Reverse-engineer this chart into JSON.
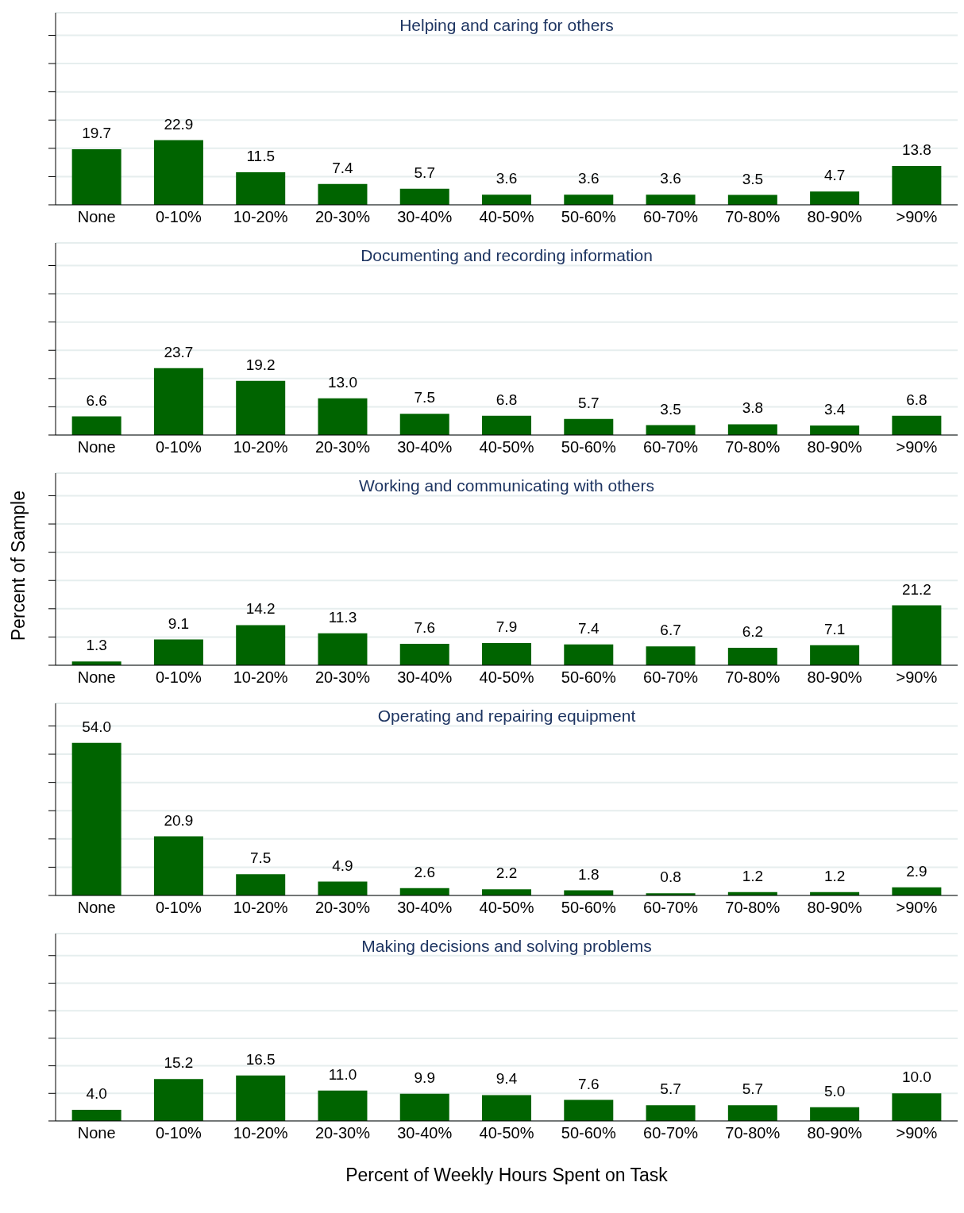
{
  "chart_data": [
    {
      "type": "bar",
      "title": "Helping and caring for others",
      "categories": [
        "None",
        "0-10%",
        "10-20%",
        "20-30%",
        "30-40%",
        "40-50%",
        "50-60%",
        "60-70%",
        "70-80%",
        "80-90%",
        ">90%"
      ],
      "values": [
        19.7,
        22.9,
        11.5,
        7.4,
        5.7,
        3.6,
        3.6,
        3.6,
        3.5,
        4.7,
        13.8
      ],
      "value_labels": [
        "19.7",
        "22.9",
        "11.5",
        "7.4",
        "5.7",
        "3.6",
        "3.6",
        "3.6",
        "3.5",
        "4.7",
        "13.8"
      ],
      "color": "#006400",
      "ylim": [
        0,
        68
      ],
      "yticks": [
        {
          "value": 0,
          "label": null
        },
        {
          "value": 10,
          "label": null
        },
        {
          "value": 20,
          "label": null
        },
        {
          "value": 30,
          "label": null
        },
        {
          "value": 40,
          "label": null
        },
        {
          "value": 50,
          "label": null
        },
        {
          "value": 60,
          "label": null
        }
      ],
      "tick_labels": "x",
      "grid": "y"
    },
    {
      "type": "bar",
      "title": "Documenting and recording information",
      "categories": [
        "None",
        "0-10%",
        "10-20%",
        "20-30%",
        "30-40%",
        "40-50%",
        "50-60%",
        "60-70%",
        "70-80%",
        "80-90%",
        ">90%"
      ],
      "values": [
        6.6,
        23.7,
        19.2,
        13.0,
        7.5,
        6.8,
        5.7,
        3.5,
        3.8,
        3.4,
        6.8
      ],
      "value_labels": [
        "6.6",
        "23.7",
        "19.2",
        "13.0",
        "7.5",
        "6.8",
        "5.7",
        "3.5",
        "3.8",
        "3.4",
        "6.8"
      ],
      "color": "#006400",
      "ylim": [
        0,
        68
      ],
      "yticks": [
        {
          "value": 0,
          "label": null
        },
        {
          "value": 10,
          "label": null
        },
        {
          "value": 20,
          "label": null
        },
        {
          "value": 30,
          "label": null
        },
        {
          "value": 40,
          "label": null
        },
        {
          "value": 50,
          "label": null
        },
        {
          "value": 60,
          "label": null
        }
      ],
      "tick_labels": "x",
      "grid": "y"
    },
    {
      "type": "bar",
      "title": "Working and communicating with others",
      "ylabel": "Percent of Sample",
      "categories": [
        "None",
        "0-10%",
        "10-20%",
        "20-30%",
        "30-40%",
        "40-50%",
        "50-60%",
        "60-70%",
        "70-80%",
        "80-90%",
        ">90%"
      ],
      "values": [
        1.3,
        9.1,
        14.2,
        11.3,
        7.6,
        7.9,
        7.4,
        6.7,
        6.2,
        7.1,
        21.2
      ],
      "value_labels": [
        "1.3",
        "9.1",
        "14.2",
        "11.3",
        "7.6",
        "7.9",
        "7.4",
        "6.7",
        "6.2",
        "7.1",
        "21.2"
      ],
      "color": "#006400",
      "ylim": [
        0,
        68
      ],
      "yticks": [
        {
          "value": 0,
          "label": null
        },
        {
          "value": 10,
          "label": null
        },
        {
          "value": 20,
          "label": null
        },
        {
          "value": 30,
          "label": null
        },
        {
          "value": 40,
          "label": null
        },
        {
          "value": 50,
          "label": null
        },
        {
          "value": 60,
          "label": null
        }
      ],
      "tick_labels": "x",
      "grid": "y"
    },
    {
      "type": "bar",
      "title": "Operating and repairing equipment",
      "categories": [
        "None",
        "0-10%",
        "10-20%",
        "20-30%",
        "30-40%",
        "40-50%",
        "50-60%",
        "60-70%",
        "70-80%",
        "80-90%",
        ">90%"
      ],
      "values": [
        54.0,
        20.9,
        7.5,
        4.9,
        2.6,
        2.2,
        1.8,
        0.8,
        1.2,
        1.2,
        2.9
      ],
      "value_labels": [
        "54.0",
        "20.9",
        "7.5",
        "4.9",
        "2.6",
        "2.2",
        "1.8",
        "0.8",
        "1.2",
        "1.2",
        "2.9"
      ],
      "color": "#006400",
      "ylim": [
        0,
        68
      ],
      "yticks": [
        {
          "value": 0,
          "label": null
        },
        {
          "value": 10,
          "label": null
        },
        {
          "value": 20,
          "label": null
        },
        {
          "value": 30,
          "label": null
        },
        {
          "value": 40,
          "label": null
        },
        {
          "value": 50,
          "label": null
        },
        {
          "value": 60,
          "label": null
        }
      ],
      "tick_labels": "x",
      "grid": "y"
    },
    {
      "type": "bar",
      "title": "Making decisions and solving problems",
      "xlabel": "Percent of Weekly Hours Spent on Task",
      "categories": [
        "None",
        "0-10%",
        "10-20%",
        "20-30%",
        "30-40%",
        "40-50%",
        "50-60%",
        "60-70%",
        "70-80%",
        "80-90%",
        ">90%"
      ],
      "values": [
        4.0,
        15.2,
        16.5,
        11.0,
        9.9,
        9.4,
        7.6,
        5.7,
        5.7,
        5.0,
        10.0
      ],
      "value_labels": [
        "4.0",
        "15.2",
        "16.5",
        "11.0",
        "9.9",
        "9.4",
        "7.6",
        "5.7",
        "5.7",
        "5.0",
        "10.0"
      ],
      "color": "#006400",
      "ylim": [
        0,
        68
      ],
      "yticks": [
        {
          "value": 0,
          "label": null
        },
        {
          "value": 10,
          "label": null
        },
        {
          "value": 20,
          "label": null
        },
        {
          "value": 30,
          "label": null
        },
        {
          "value": 40,
          "label": null
        },
        {
          "value": 50,
          "label": null
        },
        {
          "value": 60,
          "label": null
        }
      ],
      "tick_labels": "x",
      "grid": "y"
    }
  ]
}
